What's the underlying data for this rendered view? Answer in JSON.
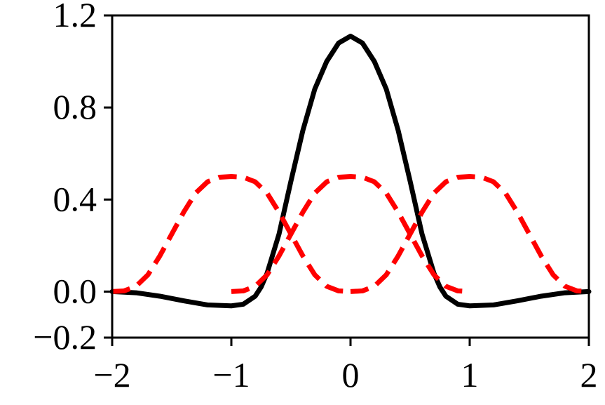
{
  "chart_data": {
    "type": "line",
    "title": "",
    "xlabel": "",
    "ylabel": "",
    "xlim": [
      -2,
      2
    ],
    "ylim": [
      -0.2,
      1.2
    ],
    "x_ticks": [
      -2,
      -1,
      0,
      1,
      2
    ],
    "x_tick_labels": [
      "−2",
      "−1",
      "0",
      "1",
      "2"
    ],
    "y_ticks": [
      -0.2,
      0.0,
      0.4,
      0.8,
      1.2
    ],
    "y_tick_labels": [
      "−0.2",
      "0.0",
      "0.4",
      "0.8",
      "1.2"
    ],
    "grid": false,
    "legend": "none",
    "series": [
      {
        "style": "solid",
        "color": "#000000",
        "x": [
          -2.0,
          -1.8,
          -1.6,
          -1.4,
          -1.2,
          -1.0,
          -0.9,
          -0.8,
          -0.75,
          -0.7,
          -0.6,
          -0.5,
          -0.4,
          -0.3,
          -0.2,
          -0.1,
          0.0,
          0.1,
          0.2,
          0.3,
          0.4,
          0.5,
          0.6,
          0.7,
          0.75,
          0.8,
          0.9,
          1.0,
          1.2,
          1.4,
          1.6,
          1.8,
          2.0
        ],
        "y": [
          0.0,
          -0.005,
          -0.02,
          -0.04,
          -0.058,
          -0.062,
          -0.055,
          -0.02,
          0.02,
          0.08,
          0.25,
          0.48,
          0.7,
          0.88,
          1.0,
          1.08,
          1.11,
          1.08,
          1.0,
          0.88,
          0.7,
          0.48,
          0.25,
          0.08,
          0.02,
          -0.02,
          -0.055,
          -0.062,
          -0.058,
          -0.04,
          -0.02,
          -0.005,
          0.0
        ]
      },
      {
        "style": "dashed",
        "color": "#ff0000",
        "x": [
          -2.0,
          -1.9,
          -1.8,
          -1.7,
          -1.6,
          -1.5,
          -1.4,
          -1.3,
          -1.2,
          -1.1,
          -1.0,
          -0.9,
          -0.8,
          -0.7,
          -0.6,
          -0.5,
          -0.4,
          -0.3,
          -0.2,
          -0.1,
          0.0
        ],
        "y": [
          0.0,
          0.003,
          0.023,
          0.073,
          0.155,
          0.25,
          0.345,
          0.428,
          0.477,
          0.497,
          0.5,
          0.497,
          0.477,
          0.428,
          0.345,
          0.25,
          0.155,
          0.073,
          0.023,
          0.003,
          0.0
        ]
      },
      {
        "style": "dashed",
        "color": "#ff0000",
        "x": [
          -1.0,
          -0.9,
          -0.8,
          -0.7,
          -0.6,
          -0.5,
          -0.4,
          -0.3,
          -0.2,
          -0.1,
          0.0,
          0.1,
          0.2,
          0.3,
          0.4,
          0.5,
          0.6,
          0.7,
          0.8,
          0.9,
          1.0
        ],
        "y": [
          0.0,
          0.003,
          0.023,
          0.073,
          0.155,
          0.25,
          0.345,
          0.428,
          0.477,
          0.497,
          0.5,
          0.497,
          0.477,
          0.428,
          0.345,
          0.25,
          0.155,
          0.073,
          0.023,
          0.003,
          0.0
        ]
      },
      {
        "style": "dashed",
        "color": "#ff0000",
        "x": [
          0.0,
          0.1,
          0.2,
          0.3,
          0.4,
          0.5,
          0.6,
          0.7,
          0.8,
          0.9,
          1.0,
          1.1,
          1.2,
          1.3,
          1.4,
          1.5,
          1.6,
          1.7,
          1.8,
          1.9,
          2.0
        ],
        "y": [
          0.0,
          0.003,
          0.023,
          0.073,
          0.155,
          0.25,
          0.345,
          0.428,
          0.477,
          0.497,
          0.5,
          0.497,
          0.477,
          0.428,
          0.345,
          0.25,
          0.155,
          0.073,
          0.023,
          0.003,
          0.0
        ]
      }
    ]
  }
}
